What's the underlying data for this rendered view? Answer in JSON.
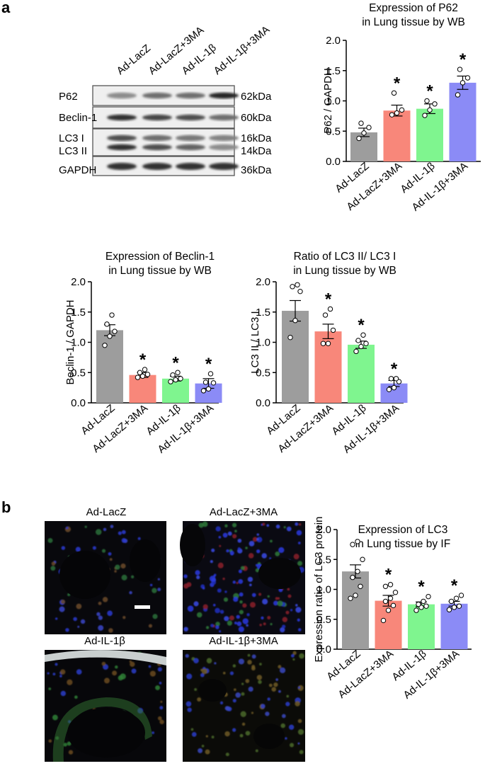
{
  "panels": {
    "a": "a",
    "b": "b"
  },
  "western_blot": {
    "lanes": [
      "Ad-LacZ",
      "Ad-LacZ+3MA",
      "Ad-IL-1β",
      "Ad-IL-1β+3MA"
    ],
    "bands": [
      {
        "name": "P62",
        "kda": "62kDa",
        "intensity": [
          0.45,
          0.6,
          0.6,
          0.95
        ]
      },
      {
        "name": "Beclin-1",
        "kda": "60kDa",
        "intensity": [
          0.9,
          0.8,
          0.75,
          0.6
        ]
      },
      {
        "name": "LC3 I",
        "kda": "16kDa",
        "intensity": [
          0.75,
          0.6,
          0.55,
          0.5
        ]
      },
      {
        "name": "LC3 II",
        "kda": "14kDa",
        "intensity": [
          0.9,
          0.75,
          0.65,
          0.45
        ]
      },
      {
        "name": "GAPDH",
        "kda": "36kDa",
        "intensity": [
          0.9,
          0.9,
          0.9,
          0.9
        ]
      }
    ]
  },
  "microscopy": {
    "titles": [
      "Ad-LacZ",
      "Ad-LacZ+3MA",
      "Ad-IL-1β",
      "Ad-IL-1β+3MA"
    ]
  },
  "colors": {
    "gray": "#9d9d9d",
    "red": "#f8877a",
    "green": "#7ff58f",
    "blue": "#8b8bf6"
  },
  "chart_data": [
    {
      "type": "bar",
      "title": [
        "Expression of P62",
        "in Lung tissue by WB"
      ],
      "ylabel": "P62 / GAPDH",
      "categories": [
        "Ad-LacZ",
        "Ad-LacZ+3MA",
        "Ad-IL-1β",
        "Ad-IL-1β+3MA"
      ],
      "values": [
        0.48,
        0.84,
        0.87,
        1.3
      ],
      "errors": [
        0.07,
        0.09,
        0.08,
        0.11
      ],
      "points": [
        [
          0.38,
          0.47,
          0.56,
          0.63
        ],
        [
          0.77,
          0.8,
          0.85,
          1.13
        ],
        [
          0.76,
          0.85,
          0.95,
          1.0
        ],
        [
          1.1,
          1.3,
          1.38,
          1.52
        ]
      ],
      "significant": [
        false,
        true,
        true,
        true
      ],
      "ylim": [
        0,
        2.0
      ],
      "yticks": [
        "0.0",
        "0.5",
        "1.0",
        "1.5",
        "2.0"
      ]
    },
    {
      "type": "bar",
      "title": [
        "Expression of Beclin-1",
        "in Lung tissue by WB"
      ],
      "ylabel": "Beclin-1 / GAPDH",
      "categories": [
        "Ad-LacZ",
        "Ad-LacZ+3MA",
        "Ad-IL-1β",
        "Ad-IL-1β+3MA"
      ],
      "values": [
        1.2,
        0.46,
        0.4,
        0.32
      ],
      "errors": [
        0.09,
        0.04,
        0.04,
        0.08
      ],
      "points": [
        [
          0.95,
          1.1,
          1.18,
          1.3,
          1.45
        ],
        [
          0.42,
          0.44,
          0.47,
          0.5,
          0.55
        ],
        [
          0.35,
          0.38,
          0.4,
          0.46,
          0.5
        ],
        [
          0.2,
          0.23,
          0.33,
          0.34,
          0.48
        ]
      ],
      "significant": [
        false,
        true,
        true,
        true
      ],
      "ylim": [
        0,
        2.0
      ],
      "yticks": [
        "0.0",
        "0.5",
        "1.0",
        "1.5",
        "2.0"
      ]
    },
    {
      "type": "bar",
      "title": [
        "Ratio of LC3 II/ LC3 I",
        "in Lung tissue by WB"
      ],
      "ylabel": "LC3 II / LC3 I",
      "categories": [
        "Ad-LacZ",
        "Ad-LacZ+3MA",
        "Ad-IL-1β",
        "Ad-IL-1β+3MA"
      ],
      "values": [
        1.52,
        1.18,
        0.96,
        0.32
      ],
      "errors": [
        0.17,
        0.12,
        0.06,
        0.05
      ],
      "points": [
        [
          1.08,
          1.36,
          1.84,
          1.92,
          1.95
        ],
        [
          0.98,
          0.98,
          1.2,
          1.45,
          1.55
        ],
        [
          0.85,
          0.93,
          0.98,
          1.03,
          1.12
        ],
        [
          0.22,
          0.25,
          0.35,
          0.4,
          0.4
        ]
      ],
      "significant": [
        false,
        true,
        true,
        true
      ],
      "ylim": [
        0,
        2.0
      ],
      "yticks": [
        "0.0",
        "0.5",
        "1.0",
        "1.5",
        "2.0"
      ]
    },
    {
      "type": "bar",
      "title": [
        "Expression of LC3",
        "in Lung tissue by IF"
      ],
      "ylabel": "Expression ratio of LC3 protein",
      "categories": [
        "Ad-LacZ",
        "Ad-LacZ+3MA",
        "Ad-IL-1β",
        "Ad-IL-1β+3MA"
      ],
      "values": [
        1.3,
        0.81,
        0.75,
        0.76
      ],
      "errors": [
        0.11,
        0.09,
        0.04,
        0.04
      ],
      "points": [
        [
          0.85,
          0.9,
          1.05,
          1.2,
          1.3,
          1.5,
          1.75,
          1.8
        ],
        [
          0.48,
          0.65,
          0.73,
          0.8,
          0.85,
          0.95,
          1.05,
          1.08
        ],
        [
          0.65,
          0.7,
          0.72,
          0.75,
          0.8,
          0.88
        ],
        [
          0.66,
          0.7,
          0.72,
          0.8,
          0.85,
          0.9
        ]
      ],
      "significant": [
        false,
        true,
        true,
        true
      ],
      "ylim": [
        0,
        2.0
      ],
      "yticks": [
        "0.0",
        "0.5",
        "1.0",
        "1.5",
        "2.0"
      ]
    }
  ]
}
